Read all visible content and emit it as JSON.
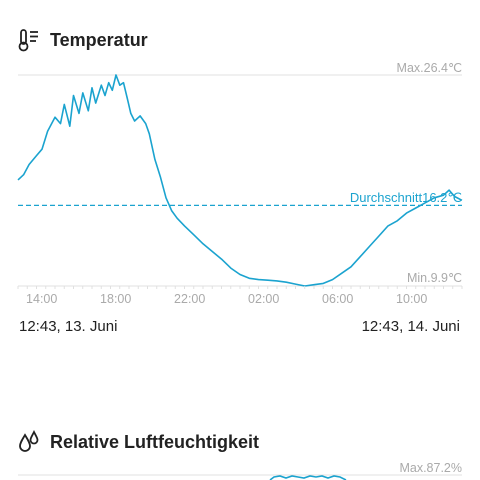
{
  "temperature": {
    "title": "Temperatur",
    "max_label": "Max.26.4℃",
    "min_label": "Min.9.9℃",
    "avg_label": "Durchschnitt16.2℃",
    "range_start": "12:43, 13. Juni",
    "range_end": "12:43, 14. Juni"
  },
  "humidity": {
    "title": "Relative Luftfeuchtigkeit",
    "max_label": "Max.87.2%"
  },
  "colors": {
    "line": "#1ba3cf",
    "grid": "#e0e0e0",
    "muted_text": "#aaaaaa"
  },
  "chart_data": {
    "type": "line",
    "title": "Temperatur",
    "xlabel": "",
    "ylabel": "",
    "ylim": [
      9.9,
      26.4
    ],
    "x_ticks": [
      "14:00",
      "18:00",
      "22:00",
      "02:00",
      "06:00",
      "10:00"
    ],
    "x_tick_hours": [
      1.283,
      5.283,
      9.283,
      13.283,
      17.283,
      21.283
    ],
    "average": 16.2,
    "series": [
      {
        "x": [
          0,
          0.3,
          0.6,
          1.0,
          1.3,
          1.6,
          2.0,
          2.3,
          2.5,
          2.8,
          3.0,
          3.3,
          3.5,
          3.8,
          4.0,
          4.2,
          4.5,
          4.7,
          4.9,
          5.1,
          5.3,
          5.5,
          5.7,
          5.9,
          6.1,
          6.3,
          6.6,
          6.9,
          7.1,
          7.4,
          7.7,
          8.0,
          8.3,
          8.6,
          9.0,
          9.5,
          10.0,
          10.5,
          11.0,
          11.5,
          12.0,
          12.5,
          13.0,
          13.5,
          14.0,
          14.5,
          15.0,
          15.5,
          16.0,
          16.5,
          17.0,
          17.5,
          18.0,
          18.5,
          19.0,
          19.5,
          20.0,
          20.5,
          21.0,
          21.5,
          22.0,
          22.5,
          23.0,
          23.3,
          23.6,
          24.0
        ],
        "values": [
          18.2,
          18.6,
          19.4,
          20.1,
          20.6,
          22.0,
          23.1,
          22.6,
          24.1,
          22.4,
          24.8,
          23.4,
          25.0,
          23.6,
          25.4,
          24.2,
          25.6,
          24.8,
          25.8,
          25.2,
          26.4,
          25.6,
          25.8,
          24.6,
          23.4,
          22.8,
          23.2,
          22.6,
          21.8,
          19.8,
          18.4,
          16.8,
          15.8,
          15.2,
          14.6,
          13.9,
          13.2,
          12.6,
          12.0,
          11.3,
          10.8,
          10.5,
          10.4,
          10.35,
          10.3,
          10.2,
          10.05,
          9.9,
          10.0,
          10.1,
          10.4,
          10.9,
          11.4,
          12.2,
          13.0,
          13.8,
          14.6,
          15.0,
          15.6,
          16.0,
          16.4,
          16.8,
          17.0,
          17.4,
          16.9,
          16.6
        ]
      }
    ]
  }
}
